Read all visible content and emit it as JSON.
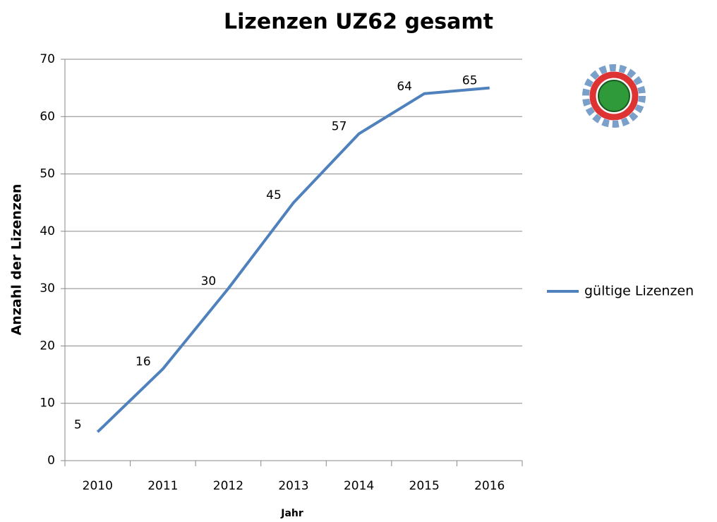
{
  "chart_data": {
    "type": "line",
    "title": "Lizenzen UZ62 gesamt",
    "x_label": "Jahr",
    "y_label": "Anzahl der Lizenzen",
    "categories": [
      "2010",
      "2011",
      "2012",
      "2013",
      "2014",
      "2015",
      "2016"
    ],
    "series": [
      {
        "name": "gültige Lizenzen",
        "color": "#4f81bd",
        "values": [
          5,
          16,
          30,
          45,
          57,
          64,
          65
        ]
      }
    ],
    "ylim": [
      0,
      70
    ],
    "yticks": [
      0,
      10,
      20,
      30,
      40,
      50,
      60,
      70
    ],
    "grid": true,
    "legend": "right"
  }
}
